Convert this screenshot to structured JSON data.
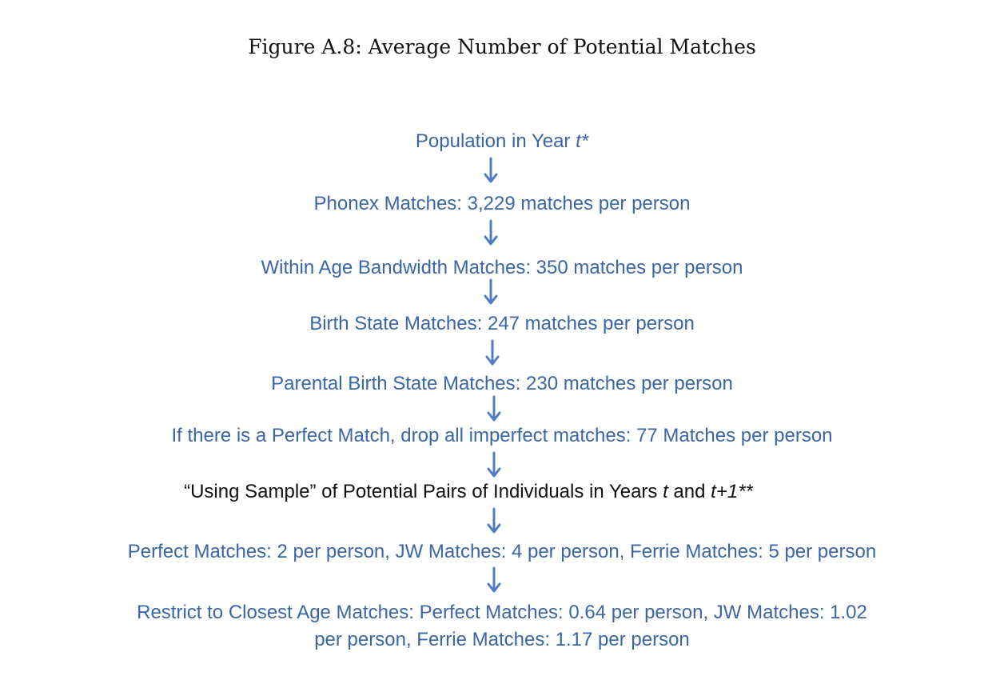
{
  "figure": {
    "title": "Figure A.8:  Average Number of Potential Matches"
  },
  "colors": {
    "node_text": "#3a66a6",
    "highlight_text": "#111111",
    "arrow": "#4f7dc0"
  },
  "nodes": {
    "population": {
      "text": "Population in Year ",
      "italic": "t*"
    },
    "phonex": {
      "text": "Phonex Matches: 3,229 matches per person"
    },
    "age_bandwidth": {
      "text": "Within Age Bandwidth Matches: 350 matches per person"
    },
    "birth_state": {
      "text": "Birth State Matches: 247 matches per person"
    },
    "parental_birth_state": {
      "text": "Parental Birth State Matches: 230 matches per person"
    },
    "perfect_drop": {
      "text": "If there is a Perfect Match, drop all imperfect matches: 77 Matches per person"
    },
    "using_sample": {
      "text_before": "“Using Sample” of Potential Pairs of Individuals in Years ",
      "italic_t": "t",
      "text_mid": " and ",
      "italic_t1": "t+1**"
    },
    "match_counts": {
      "text": "Perfect Matches: 2 per person, JW Matches: 4 per person, Ferrie Matches: 5 per person"
    },
    "closest_age": {
      "line1": "Restrict to Closest Age Matches: Perfect Matches: 0.64 per person, JW Matches: 1.02",
      "line2": "per person, Ferrie Matches: 1.17 per person"
    }
  }
}
